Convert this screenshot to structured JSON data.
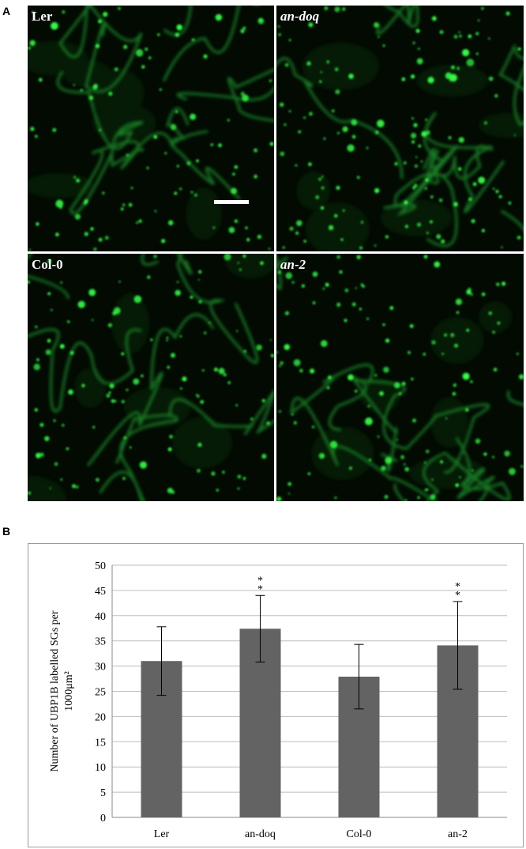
{
  "panel_a": {
    "letter": "A",
    "images": [
      {
        "label": "Ler",
        "italic": false,
        "seed": 11
      },
      {
        "label": "an-doq",
        "italic": true,
        "seed": 29
      },
      {
        "label": "Col-0",
        "italic": false,
        "seed": 47
      },
      {
        "label": "an-2",
        "italic": true,
        "seed": 83
      }
    ],
    "colors": {
      "granule": "#33ff44",
      "membrane": "#1f8f2a",
      "background": "#020a02"
    }
  },
  "panel_b": {
    "letter": "B",
    "chart_data": {
      "type": "bar",
      "categories": [
        "Ler",
        "an-doq",
        "Col-0",
        "an-2"
      ],
      "values": [
        31,
        37.4,
        27.9,
        34.1
      ],
      "errors": [
        6.8,
        6.6,
        6.4,
        8.7
      ],
      "significance": [
        "",
        "**",
        "",
        "**"
      ],
      "ylabel_line1": "Number of UBP1B labelled SGs per",
      "ylabel_line2": "1000μm²",
      "ylim": [
        0,
        50
      ],
      "yticks": [
        "0",
        "5",
        "10",
        "15",
        "20",
        "25",
        "30",
        "35",
        "40",
        "45",
        "50"
      ],
      "grid": true,
      "bar_color": "#636363"
    }
  }
}
